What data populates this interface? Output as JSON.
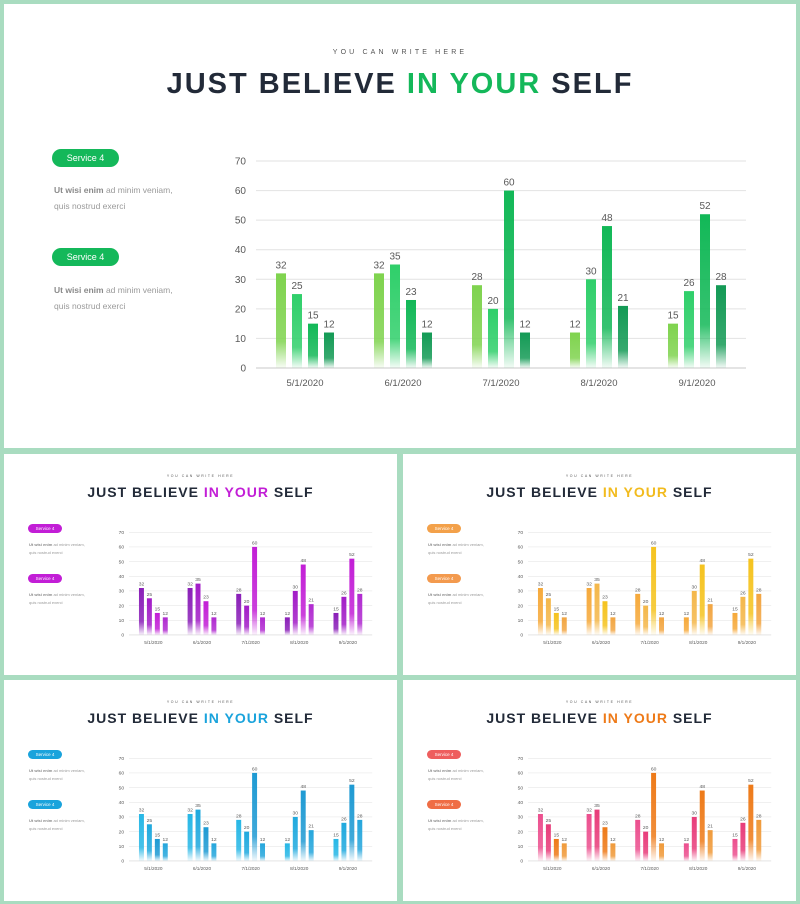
{
  "slides": [
    {
      "kicker": "YOU CAN WRITE HERE",
      "title_pre": "JUST BELIEVE ",
      "title_hi": "IN YOUR",
      "title_post": " SELF",
      "accent": "#14b85a",
      "services": [
        {
          "label": "Service 4",
          "desc_bold": "Ut wisi enim",
          "desc_rest": " ad minim veniam,",
          "desc_line2": "quis nostrud exerci"
        },
        {
          "label": "Service 4",
          "desc_bold": "Ut wisi enim",
          "desc_rest": " ad minim veniam,",
          "desc_line2": "quis nostrud exerci"
        }
      ],
      "series_colors": [
        "#7fd34e",
        "#2fcf6a",
        "#12b857",
        "#139a55"
      ]
    },
    {
      "kicker": "YOU CAN WRITE HERE",
      "title_pre": "JUST BELIEVE ",
      "title_hi": "IN YOUR",
      "title_post": " SELF",
      "accent": "#c21ed6",
      "services": [
        {
          "label": "Service 4",
          "desc_bold": "Ut wisi enim",
          "desc_rest": " ad minim veniam,",
          "desc_line2": "quis nostrud exerci"
        },
        {
          "label": "Service 4",
          "desc_bold": "Ut wisi enim",
          "desc_rest": " ad minim veniam,",
          "desc_line2": "quis nostrud exerci"
        }
      ],
      "series_colors": [
        "#8a1fb8",
        "#a21cc7",
        "#c21ed6",
        "#b02ad0"
      ]
    },
    {
      "kicker": "YOU CAN WRITE HERE",
      "title_pre": "JUST BELIEVE ",
      "title_hi": "IN YOUR",
      "title_post": " SELF",
      "accent": "#f2bb1e",
      "services": [
        {
          "label": "Service 4",
          "desc_bold": "Ut wisi enim",
          "desc_rest": " ad minim veniam,",
          "desc_line2": "quis nostrud exerci"
        },
        {
          "label": "Service 4",
          "desc_bold": "Ut wisi enim",
          "desc_rest": " ad minim veniam,",
          "desc_line2": "quis nostrud exerci"
        }
      ],
      "series_colors": [
        "#f6a93a",
        "#f4b74a",
        "#f5c31f",
        "#f2a541"
      ],
      "pill_colors": [
        "#f3a14a",
        "#f39a4e"
      ]
    },
    {
      "kicker": "YOU CAN WRITE HERE",
      "title_pre": "JUST BELIEVE ",
      "title_hi": "IN YOUR",
      "title_post": " SELF",
      "accent": "#1aa3dc",
      "services": [
        {
          "label": "Service 4",
          "desc_bold": "Ut wisi enim",
          "desc_rest": " ad minim veniam,",
          "desc_line2": "quis nostrud exerci"
        },
        {
          "label": "Service 4",
          "desc_bold": "Ut wisi enim",
          "desc_rest": " ad minim veniam,",
          "desc_line2": "quis nostrud exerci"
        }
      ],
      "series_colors": [
        "#27b7e6",
        "#1fa9de",
        "#1e9ad3",
        "#25a6dc"
      ]
    },
    {
      "kicker": "YOU CAN WRITE HERE",
      "title_pre": "JUST BELIEVE ",
      "title_hi": "IN YOUR",
      "title_post": " SELF",
      "accent": "#ee7a18",
      "services": [
        {
          "label": "Service 4",
          "desc_bold": "Ut wisi enim",
          "desc_rest": " ad minim veniam,",
          "desc_line2": "quis nostrud exerci"
        },
        {
          "label": "Service 4",
          "desc_bold": "Ut wisi enim",
          "desc_rest": " ad minim veniam,",
          "desc_line2": "quis nostrud exerci"
        }
      ],
      "series_colors": [
        "#ec4f8e",
        "#e83c7a",
        "#ee7a18",
        "#f09a3a"
      ],
      "pill_colors": [
        "#ee5e5e",
        "#ef6d45"
      ]
    }
  ],
  "chart_data": {
    "type": "bar",
    "categories": [
      "5/1/2020",
      "6/1/2020",
      "7/1/2020",
      "8/1/2020",
      "9/1/2020"
    ],
    "series": [
      {
        "values": [
          32,
          32,
          28,
          12,
          15
        ]
      },
      {
        "values": [
          25,
          35,
          20,
          30,
          26
        ]
      },
      {
        "values": [
          15,
          23,
          60,
          48,
          52
        ]
      },
      {
        "values": [
          12,
          12,
          12,
          21,
          28
        ]
      }
    ],
    "yticks": [
      0,
      10,
      20,
      30,
      40,
      50,
      60,
      70
    ],
    "ylim": [
      0,
      70
    ],
    "grid": true
  }
}
